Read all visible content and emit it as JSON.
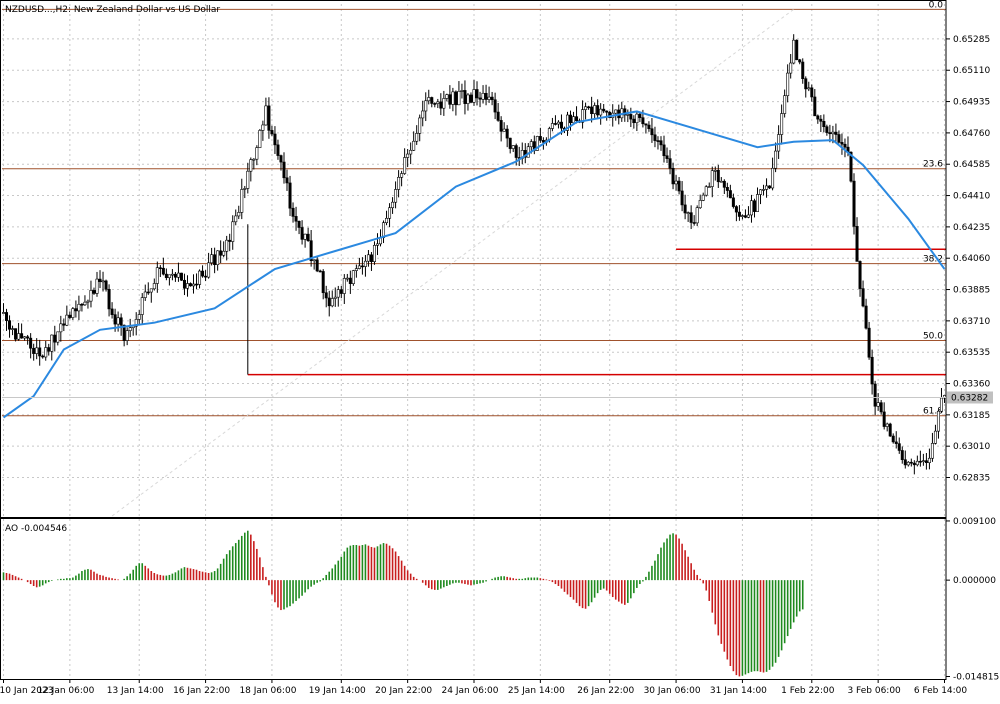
{
  "symbol_label": "NZDUSD...,H2: New Zealand Dollar vs US Dollar",
  "ao_label": "AO -0.004546",
  "colors": {
    "grid": "#c8c8c8",
    "bull_candle": "#000000",
    "bear_candle": "#000000",
    "ma": "#2b89e0",
    "fib": "#a0522d",
    "level": "#d40000",
    "ao_up": "#1e8a1e",
    "ao_down": "#c81e1e",
    "price_box": "#c0c0c0"
  },
  "chart_data": [
    {
      "type": "candlestick",
      "title": "NZDUSD...,H2: New Zealand Dollar vs US Dollar",
      "y_ticks": [
        "0.65285",
        "0.65110",
        "0.64935",
        "0.64760",
        "0.64585",
        "0.64410",
        "0.64235",
        "0.64060",
        "0.63885",
        "0.63710",
        "0.63535",
        "0.63360",
        "0.63185",
        "0.63010",
        "0.62835"
      ],
      "ylim": [
        0.6262,
        0.6548
      ],
      "x_ticks": [
        "10 Jan 2023",
        "12 Jan 06:00",
        "13 Jan 14:00",
        "16 Jan 22:00",
        "18 Jan 06:00",
        "19 Jan 14:00",
        "20 Jan 22:00",
        "24 Jan 06:00",
        "25 Jan 14:00",
        "26 Jan 22:00",
        "30 Jan 06:00",
        "31 Jan 14:00",
        "1 Feb 22:00",
        "3 Feb 06:00",
        "6 Feb 14:00"
      ],
      "current_price": "0.63282",
      "grid": true,
      "fibonacci_levels": [
        {
          "label": "0.0",
          "value": 0.6545
        },
        {
          "label": "23.6",
          "value": 0.6456
        },
        {
          "label": "38.2",
          "value": 0.6403
        },
        {
          "label": "50.0",
          "value": 0.636
        },
        {
          "label": "61.8",
          "value": 0.6318
        }
      ],
      "horizontal_levels": [
        0.6341,
        0.6411
      ],
      "anchors": [
        {
          "x": 0,
          "close": 0.6372
        },
        {
          "x": 12,
          "close": 0.6351
        },
        {
          "x": 25,
          "close": 0.638
        },
        {
          "x": 32,
          "close": 0.6395
        },
        {
          "x": 40,
          "close": 0.636
        },
        {
          "x": 52,
          "close": 0.6402
        },
        {
          "x": 62,
          "close": 0.6388
        },
        {
          "x": 75,
          "close": 0.6418
        },
        {
          "x": 87,
          "close": 0.6488
        },
        {
          "x": 95,
          "close": 0.6438
        },
        {
          "x": 108,
          "close": 0.6382
        },
        {
          "x": 122,
          "close": 0.6408
        },
        {
          "x": 140,
          "close": 0.6492
        },
        {
          "x": 160,
          "close": 0.6498
        },
        {
          "x": 170,
          "close": 0.6462
        },
        {
          "x": 182,
          "close": 0.6478
        },
        {
          "x": 198,
          "close": 0.649
        },
        {
          "x": 210,
          "close": 0.6482
        },
        {
          "x": 218,
          "close": 0.6468
        },
        {
          "x": 228,
          "close": 0.6425
        },
        {
          "x": 236,
          "close": 0.6455
        },
        {
          "x": 244,
          "close": 0.6428
        },
        {
          "x": 254,
          "close": 0.6445
        },
        {
          "x": 262,
          "close": 0.6525
        },
        {
          "x": 270,
          "close": 0.6482
        },
        {
          "x": 280,
          "close": 0.6468
        },
        {
          "x": 283,
          "close": 0.6405
        },
        {
          "x": 289,
          "close": 0.6325
        },
        {
          "x": 300,
          "close": 0.629
        },
        {
          "x": 306,
          "close": 0.6292
        },
        {
          "x": 312,
          "close": 0.633
        }
      ],
      "ma_points": [
        [
          0,
          0.6317
        ],
        [
          10,
          0.6329
        ],
        [
          20,
          0.6355
        ],
        [
          32,
          0.6366
        ],
        [
          50,
          0.637
        ],
        [
          70,
          0.6378
        ],
        [
          90,
          0.64
        ],
        [
          110,
          0.641
        ],
        [
          130,
          0.642
        ],
        [
          150,
          0.6446
        ],
        [
          170,
          0.646
        ],
        [
          190,
          0.6482
        ],
        [
          210,
          0.6488
        ],
        [
          230,
          0.6478
        ],
        [
          250,
          0.6468
        ],
        [
          262,
          0.6471
        ],
        [
          275,
          0.6472
        ],
        [
          285,
          0.6458
        ],
        [
          300,
          0.6428
        ],
        [
          312,
          0.64
        ]
      ]
    },
    {
      "type": "bar",
      "title": "AO -0.004546",
      "y_ticks": [
        "0.009100",
        "0.000000",
        "-0.014815"
      ],
      "ylim": [
        -0.0152,
        0.0094
      ],
      "values": [
        0.0012,
        0.0011,
        0.001,
        0.0008,
        0.0006,
        0.0004,
        0.0002,
        0.0,
        -0.0003,
        -0.0006,
        -0.0009,
        -0.0011,
        -0.001,
        -0.0008,
        -0.0005,
        -0.0003,
        -0.0001,
        0.0,
        0.0001,
        0.0002,
        0.0002,
        0.0003,
        0.0003,
        0.0004,
        0.0007,
        0.001,
        0.0014,
        0.0016,
        0.0017,
        0.0016,
        0.0013,
        0.001,
        0.0008,
        0.0007,
        0.0005,
        0.0004,
        0.0003,
        0.0002,
        0.0001,
        0.0,
        0.0002,
        0.0006,
        0.001,
        0.0016,
        0.0022,
        0.0026,
        0.0026,
        0.0022,
        0.0018,
        0.0014,
        0.0011,
        0.0009,
        0.0008,
        0.0007,
        0.0007,
        0.0008,
        0.001,
        0.0012,
        0.0015,
        0.0018,
        0.002,
        0.0019,
        0.0018,
        0.0017,
        0.0016,
        0.0014,
        0.0013,
        0.0012,
        0.0011,
        0.0012,
        0.0014,
        0.0018,
        0.0025,
        0.0033,
        0.004,
        0.0046,
        0.0052,
        0.0057,
        0.0062,
        0.0068,
        0.0073,
        0.0076,
        0.007,
        0.006,
        0.0048,
        0.0035,
        0.002,
        0.0005,
        -0.0008,
        -0.0022,
        -0.0034,
        -0.0042,
        -0.0046,
        -0.0045,
        -0.0042,
        -0.004,
        -0.0036,
        -0.0032,
        -0.0028,
        -0.0024,
        -0.0019,
        -0.0014,
        -0.001,
        -0.0007,
        -0.0004,
        -0.0002,
        0.0003,
        0.0008,
        0.0013,
        0.0018,
        0.0024,
        0.003,
        0.0036,
        0.0044,
        0.005,
        0.0053,
        0.0054,
        0.0054,
        0.0053,
        0.0054,
        0.0055,
        0.0053,
        0.0051,
        0.005,
        0.0052,
        0.0055,
        0.0057,
        0.0056,
        0.0053,
        0.0049,
        0.0044,
        0.0037,
        0.003,
        0.0022,
        0.0015,
        0.001,
        0.0005,
        0.0002,
        0.0,
        -0.0004,
        -0.0008,
        -0.0012,
        -0.0014,
        -0.0015,
        -0.0015,
        -0.0013,
        -0.0011,
        -0.0009,
        -0.0007,
        -0.0005,
        -0.0004,
        -0.0004,
        -0.0005,
        -0.0006,
        -0.0007,
        -0.0008,
        -0.0007,
        -0.0006,
        -0.0005,
        -0.0004,
        -0.0002,
        0.0,
        0.0002,
        0.0004,
        0.0005,
        0.0006,
        0.0006,
        0.0005,
        0.0004,
        0.0003,
        0.0002,
        0.0002,
        0.0002,
        0.0003,
        0.0004,
        0.0004,
        0.0004,
        0.0004,
        0.0003,
        0.0002,
        0.0001,
        -0.0001,
        -0.0003,
        -0.0006,
        -0.0009,
        -0.0013,
        -0.0018,
        -0.0022,
        -0.0026,
        -0.003,
        -0.0035,
        -0.004,
        -0.0043,
        -0.0044,
        -0.004,
        -0.0034,
        -0.0027,
        -0.002,
        -0.0015,
        -0.0013,
        -0.0016,
        -0.0021,
        -0.0026,
        -0.003,
        -0.0033,
        -0.0036,
        -0.0038,
        -0.0035,
        -0.0028,
        -0.002,
        -0.0012,
        -0.0006,
        -0.0002,
        0.0005,
        0.0013,
        0.0022,
        0.003,
        0.004,
        0.005,
        0.0058,
        0.0064,
        0.007,
        0.0072,
        0.007,
        0.0064,
        0.0056,
        0.0046,
        0.0036,
        0.0026,
        0.0016,
        0.0008,
        0.0002,
        -0.0005,
        -0.0016,
        -0.0032,
        -0.005,
        -0.0068,
        -0.0085,
        -0.0098,
        -0.011,
        -0.0122,
        -0.0132,
        -0.014,
        -0.0146,
        -0.0148,
        -0.0147,
        -0.0145,
        -0.0143,
        -0.0141,
        -0.014,
        -0.014,
        -0.0141,
        -0.0142,
        -0.0141,
        -0.0138,
        -0.0133,
        -0.0127,
        -0.0118,
        -0.0108,
        -0.0097,
        -0.0086,
        -0.0075,
        -0.0065,
        -0.0056,
        -0.0048,
        -0.0045
      ]
    }
  ]
}
